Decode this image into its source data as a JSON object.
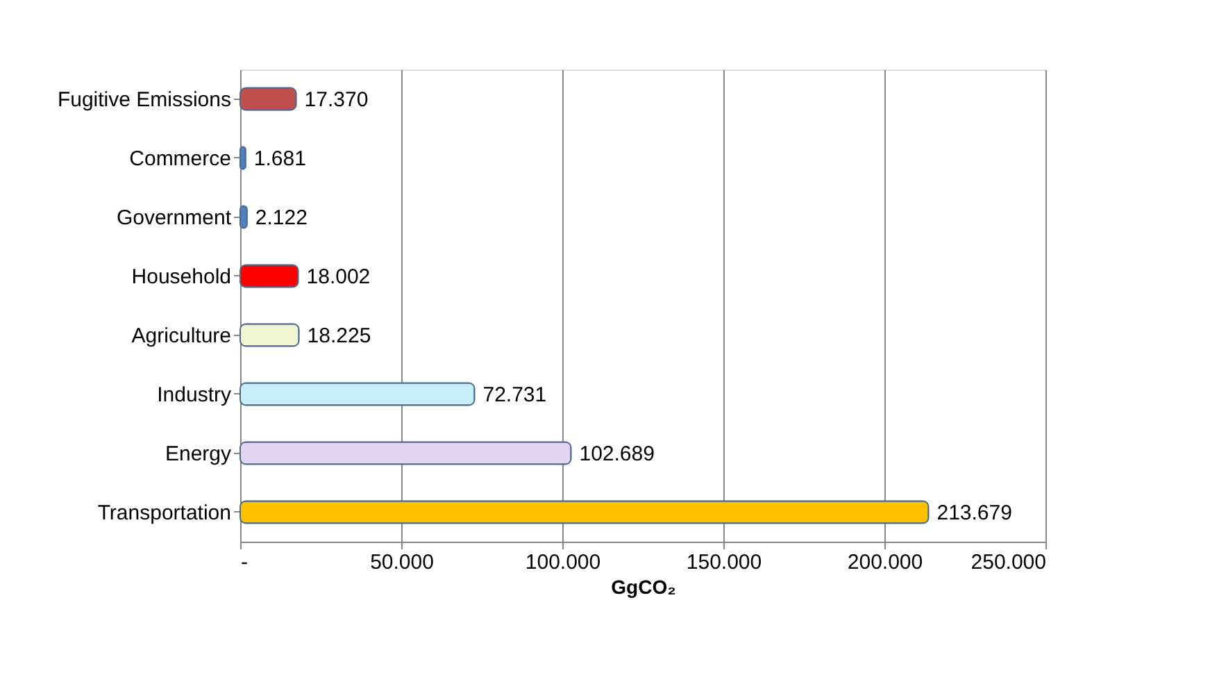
{
  "chart_data": {
    "type": "bar",
    "orientation": "horizontal",
    "xlabel": "GgCO₂",
    "categories": [
      "Fugitive Emissions",
      "Commerce",
      "Government",
      "Household",
      "Agriculture",
      "Industry",
      "Energy",
      "Transportation"
    ],
    "values": [
      17370,
      1681,
      2122,
      18002,
      18225,
      72731,
      102689,
      213679
    ],
    "colors": [
      "#c0504d",
      "#4f81bd",
      "#4f81bd",
      "#ff0000",
      "#eef5d0",
      "#c8eefa",
      "#e4d6f0",
      "#ffc000"
    ],
    "value_labels": [
      "17.370",
      "1.681",
      "2.122",
      "18.002",
      "18.225",
      "72.731",
      "102.689",
      "213.679"
    ],
    "xlim": [
      0,
      250000
    ],
    "xticks": [
      {
        "value": 0,
        "label": "-"
      },
      {
        "value": 50000,
        "label": "50.000"
      },
      {
        "value": 100000,
        "label": "100.000"
      },
      {
        "value": 150000,
        "label": "150.000"
      },
      {
        "value": 200000,
        "label": "200.000"
      },
      {
        "value": 250000,
        "label": "250.000"
      }
    ],
    "grid": "x",
    "legend": false
  }
}
